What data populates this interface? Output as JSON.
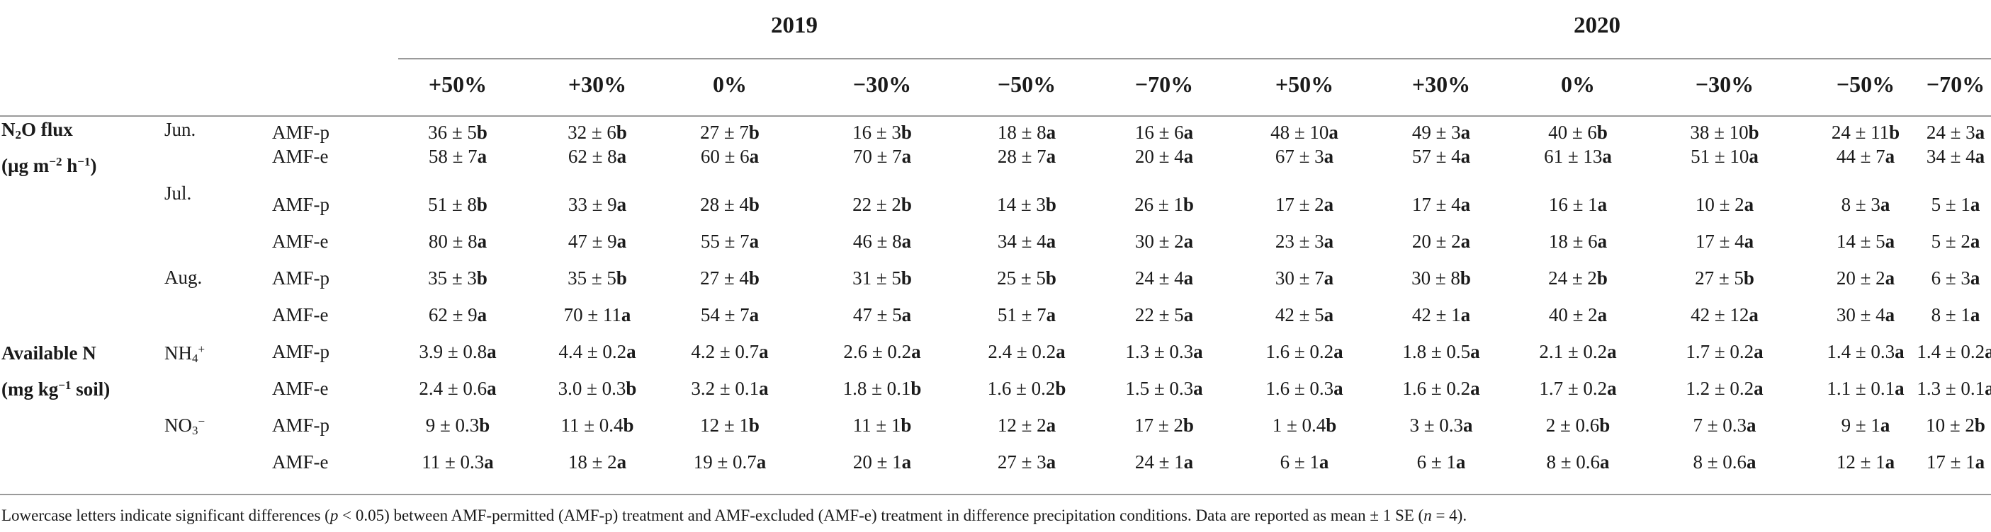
{
  "years": [
    "2019",
    "2020"
  ],
  "treatments": [
    "+50%",
    "+30%",
    "0%",
    "−30%",
    "−50%",
    "−70%",
    "+50%",
    "+30%",
    "0%",
    "−30%",
    "−50%",
    "−70%"
  ],
  "groups": {
    "n2o": {
      "line1_a": "N",
      "line1_sub": "2",
      "line1_b": "O flux",
      "line2_a": "(µg m",
      "line2_sup1": "−2",
      "line2_b": " h",
      "line2_sup2": "−1",
      "line2_c": ")"
    },
    "availn": {
      "line1": "Available N",
      "line2_a": "(mg kg",
      "line2_sup": "−1",
      "line2_b": " soil)"
    }
  },
  "subgroups": {
    "jun": "Jun.",
    "jul": "Jul.",
    "aug": "Aug.",
    "nh4": {
      "base": "NH",
      "sub": "4",
      "sup": "+"
    },
    "no3": {
      "base": "NO",
      "sub": "3",
      "sup": "−"
    }
  },
  "rows": [
    {
      "label": "AMF-p",
      "cells": [
        [
          "36 ± 5",
          "b"
        ],
        [
          "32 ± 6",
          "b"
        ],
        [
          "27 ± 7",
          "b"
        ],
        [
          "16 ± 3",
          "b"
        ],
        [
          "18 ± 8",
          "a"
        ],
        [
          "16 ± 6",
          "a"
        ],
        [
          "48 ± 10",
          "a"
        ],
        [
          "49 ± 3",
          "a"
        ],
        [
          "40 ± 6",
          "b"
        ],
        [
          "38 ± 10",
          "b"
        ],
        [
          "24 ± 11",
          "b"
        ],
        [
          "24 ± 3",
          "a"
        ]
      ]
    },
    {
      "label": "AMF-e",
      "cells": [
        [
          "58 ± 7",
          "a"
        ],
        [
          "62 ± 8",
          "a"
        ],
        [
          "60 ± 6",
          "a"
        ],
        [
          "70 ± 7",
          "a"
        ],
        [
          "28 ± 7",
          "a"
        ],
        [
          "20 ± 4",
          "a"
        ],
        [
          "67 ± 3",
          "a"
        ],
        [
          "57 ± 4",
          "a"
        ],
        [
          "61 ± 13",
          "a"
        ],
        [
          "51 ± 10",
          "a"
        ],
        [
          "44 ± 7",
          "a"
        ],
        [
          "34 ± 4",
          "a"
        ]
      ]
    },
    {
      "label": "AMF-p",
      "cells": [
        [
          "51 ± 8",
          "b"
        ],
        [
          "33 ± 9",
          "a"
        ],
        [
          "28 ± 4",
          "b"
        ],
        [
          "22 ± 2",
          "b"
        ],
        [
          "14 ± 3",
          "b"
        ],
        [
          "26 ± 1",
          "b"
        ],
        [
          "17 ± 2",
          "a"
        ],
        [
          "17 ± 4",
          "a"
        ],
        [
          "16 ± 1",
          "a"
        ],
        [
          "10 ± 2",
          "a"
        ],
        [
          "8 ± 3",
          "a"
        ],
        [
          "5 ± 1",
          "a"
        ]
      ]
    },
    {
      "label": "AMF-e",
      "cells": [
        [
          "80 ± 8",
          "a"
        ],
        [
          "47 ± 9",
          "a"
        ],
        [
          "55 ± 7",
          "a"
        ],
        [
          "46 ± 8",
          "a"
        ],
        [
          "34 ± 4",
          "a"
        ],
        [
          "30 ± 2",
          "a"
        ],
        [
          "23 ± 3",
          "a"
        ],
        [
          "20 ± 2",
          "a"
        ],
        [
          "18 ± 6",
          "a"
        ],
        [
          "17 ± 4",
          "a"
        ],
        [
          "14 ± 5",
          "a"
        ],
        [
          "5 ± 2",
          "a"
        ]
      ]
    },
    {
      "label": "AMF-p",
      "cells": [
        [
          "35 ± 3",
          "b"
        ],
        [
          "35 ± 5",
          "b"
        ],
        [
          "27 ± 4",
          "b"
        ],
        [
          "31 ± 5",
          "b"
        ],
        [
          "25 ± 5",
          "b"
        ],
        [
          "24 ± 4",
          "a"
        ],
        [
          "30 ± 7",
          "a"
        ],
        [
          "30 ± 8",
          "b"
        ],
        [
          "24 ± 2",
          "b"
        ],
        [
          "27 ± 5",
          "b"
        ],
        [
          "20 ± 2",
          "a"
        ],
        [
          "6 ± 3",
          "a"
        ]
      ]
    },
    {
      "label": "AMF-e",
      "cells": [
        [
          "62 ± 9",
          "a"
        ],
        [
          "70 ± 11",
          "a"
        ],
        [
          "54 ± 7",
          "a"
        ],
        [
          "47 ± 5",
          "a"
        ],
        [
          "51 ± 7",
          "a"
        ],
        [
          "22 ± 5",
          "a"
        ],
        [
          "42 ± 5",
          "a"
        ],
        [
          "42 ± 1",
          "a"
        ],
        [
          "40 ± 2",
          "a"
        ],
        [
          "42 ± 12",
          "a"
        ],
        [
          "30 ± 4",
          "a"
        ],
        [
          "8 ± 1",
          "a"
        ]
      ]
    },
    {
      "label": "AMF-p",
      "cells": [
        [
          "3.9 ± 0.8",
          "a"
        ],
        [
          "4.4 ± 0.2",
          "a"
        ],
        [
          "4.2 ± 0.7",
          "a"
        ],
        [
          "2.6 ± 0.2",
          "a"
        ],
        [
          "2.4 ± 0.2",
          "a"
        ],
        [
          "1.3 ± 0.3",
          "a"
        ],
        [
          "1.6 ± 0.2",
          "a"
        ],
        [
          "1.8 ± 0.5",
          "a"
        ],
        [
          "2.1 ± 0.2",
          "a"
        ],
        [
          "1.7 ± 0.2",
          "a"
        ],
        [
          "1.4 ± 0.3",
          "a"
        ],
        [
          "1.4 ± 0.2",
          "a"
        ]
      ]
    },
    {
      "label": "AMF-e",
      "cells": [
        [
          "2.4 ± 0.6",
          "a"
        ],
        [
          "3.0 ± 0.3",
          "b"
        ],
        [
          "3.2 ± 0.1",
          "a"
        ],
        [
          "1.8 ± 0.1",
          "b"
        ],
        [
          "1.6 ± 0.2",
          "b"
        ],
        [
          "1.5 ± 0.3",
          "a"
        ],
        [
          "1.6 ± 0.3",
          "a"
        ],
        [
          "1.6 ± 0.2",
          "a"
        ],
        [
          "1.7 ± 0.2",
          "a"
        ],
        [
          "1.2 ± 0.2",
          "a"
        ],
        [
          "1.1 ± 0.1",
          "a"
        ],
        [
          "1.3 ± 0.1",
          "a"
        ]
      ]
    },
    {
      "label": "AMF-p",
      "cells": [
        [
          "9 ± 0.3",
          "b"
        ],
        [
          "11 ± 0.4",
          "b"
        ],
        [
          "12 ± 1",
          "b"
        ],
        [
          "11 ± 1",
          "b"
        ],
        [
          "12 ± 2",
          "a"
        ],
        [
          "17 ± 2",
          "b"
        ],
        [
          "1 ± 0.4",
          "b"
        ],
        [
          "3 ± 0.3",
          "a"
        ],
        [
          "2 ± 0.6",
          "b"
        ],
        [
          "7 ± 0.3",
          "a"
        ],
        [
          "9 ± 1",
          "a"
        ],
        [
          "10 ± 2",
          "b"
        ]
      ]
    },
    {
      "label": "AMF-e",
      "cells": [
        [
          "11 ± 0.3",
          "a"
        ],
        [
          "18 ± 2",
          "a"
        ],
        [
          "19 ± 0.7",
          "a"
        ],
        [
          "20 ± 1",
          "a"
        ],
        [
          "27 ± 3",
          "a"
        ],
        [
          "24 ± 1",
          "a"
        ],
        [
          "6 ± 1",
          "a"
        ],
        [
          "6 ± 1",
          "a"
        ],
        [
          "8 ± 0.6",
          "a"
        ],
        [
          "8 ± 0.6",
          "a"
        ],
        [
          "12 ± 1",
          "a"
        ],
        [
          "17 ± 1",
          "a"
        ]
      ]
    }
  ],
  "footnote": {
    "a": "Lowercase letters indicate significant differences (",
    "p": "p",
    "b": " < 0.05) between AMF-permitted (AMF-p) treatment and AMF-excluded (AMF-e) treatment in difference precipitation conditions. Data are reported as mean ± 1 SE (",
    "n": "n",
    "c": " = 4)."
  }
}
